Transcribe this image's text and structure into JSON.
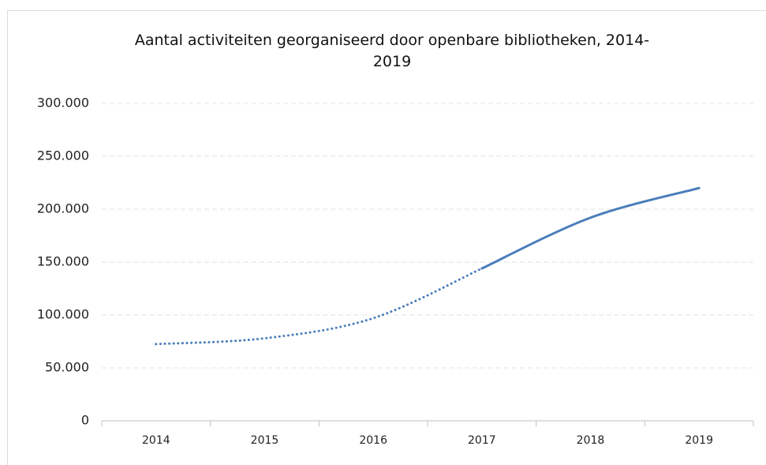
{
  "chart_data": {
    "type": "line",
    "title": "Aantal activiteiten georganiseerd door openbare bibliotheken, 2014-2019",
    "categories": [
      "2014",
      "2015",
      "2016",
      "2017",
      "2018",
      "2019"
    ],
    "series": [
      {
        "color": "#4a7ebb",
        "line_style": "dotted",
        "values": [
          72500,
          78000,
          97000,
          144000,
          null,
          null
        ]
      },
      {
        "color": "#4a7ebb",
        "line_style": "solid",
        "values": [
          null,
          null,
          null,
          144000,
          192000,
          220000
        ]
      }
    ],
    "ylim": [
      0,
      300000
    ],
    "yticks": [
      0,
      {
        "value": 50000,
        "label": "50.000"
      },
      {
        "value": 100000,
        "label": "100.000"
      },
      {
        "value": 150000,
        "label": "150.000"
      },
      {
        "value": 200000,
        "label": "200.000"
      },
      {
        "value": 250000,
        "label": "250.000"
      },
      {
        "value": 300000,
        "label": "300.000"
      }
    ],
    "grid": true
  }
}
